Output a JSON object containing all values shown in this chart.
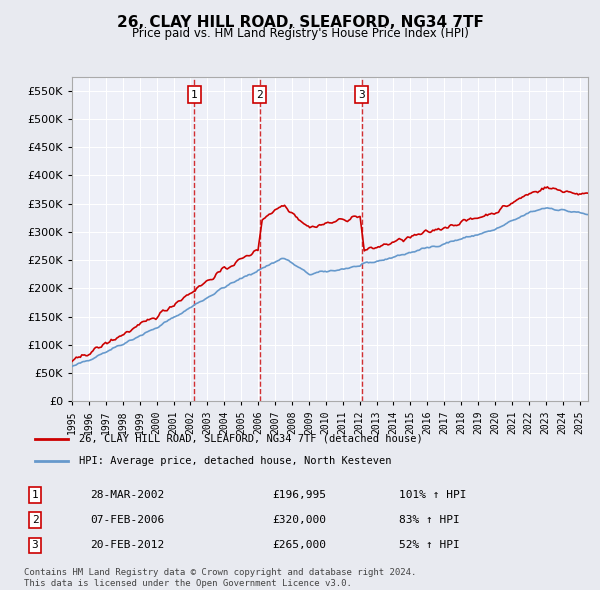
{
  "title": "26, CLAY HILL ROAD, SLEAFORD, NG34 7TF",
  "subtitle": "Price paid vs. HM Land Registry's House Price Index (HPI)",
  "legend_label_red": "26, CLAY HILL ROAD, SLEAFORD, NG34 7TF (detached house)",
  "legend_label_blue": "HPI: Average price, detached house, North Kesteven",
  "footer_line1": "Contains HM Land Registry data © Crown copyright and database right 2024.",
  "footer_line2": "This data is licensed under the Open Government Licence v3.0.",
  "transactions": [
    {
      "num": "1",
      "date": "28-MAR-2002",
      "price": "£196,995",
      "hpi": "101% ↑ HPI",
      "x": 2002.23
    },
    {
      "num": "2",
      "date": "07-FEB-2006",
      "price": "£320,000",
      "hpi": "83% ↑ HPI",
      "x": 2006.1
    },
    {
      "num": "3",
      "date": "20-FEB-2012",
      "price": "£265,000",
      "hpi": "52% ↑ HPI",
      "x": 2012.12
    }
  ],
  "xlim": [
    1995.0,
    2025.5
  ],
  "ylim": [
    0,
    575000
  ],
  "yticks": [
    0,
    50000,
    100000,
    150000,
    200000,
    250000,
    300000,
    350000,
    400000,
    450000,
    500000,
    550000
  ],
  "xticks": [
    1995,
    1996,
    1997,
    1998,
    1999,
    2000,
    2001,
    2002,
    2003,
    2004,
    2005,
    2006,
    2007,
    2008,
    2009,
    2010,
    2011,
    2012,
    2013,
    2014,
    2015,
    2016,
    2017,
    2018,
    2019,
    2020,
    2021,
    2022,
    2023,
    2024,
    2025
  ],
  "bg_color": "#e8eaf0",
  "plot_bg": "#eef0f8",
  "red_color": "#cc0000",
  "blue_color": "#6699cc",
  "grid_color": "#ffffff"
}
